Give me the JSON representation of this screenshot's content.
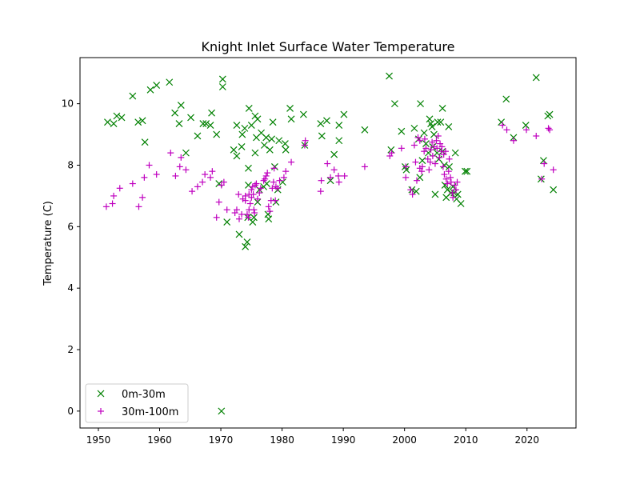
{
  "chart_data": {
    "type": "scatter",
    "title": "Knight Inlet Surface Water Temperature",
    "xlabel": "",
    "ylabel": "Temperature (C)",
    "xlim": [
      1947,
      2028
    ],
    "ylim": [
      -0.55,
      11.5
    ],
    "x_ticks": [
      1950,
      1960,
      1970,
      1980,
      1990,
      2000,
      2010,
      2020
    ],
    "y_ticks": [
      0,
      2,
      4,
      6,
      8,
      10
    ],
    "grid": false,
    "legend_position": "lower-left",
    "series": [
      {
        "name": "0m-30m",
        "marker": "x",
        "color": "#008000",
        "points": [
          [
            1951.5,
            9.4
          ],
          [
            1952.5,
            9.35
          ],
          [
            1953,
            9.6
          ],
          [
            1953.8,
            9.55
          ],
          [
            1955.6,
            10.25
          ],
          [
            1956.5,
            9.4
          ],
          [
            1957.2,
            9.45
          ],
          [
            1957.6,
            8.75
          ],
          [
            1958.5,
            10.45
          ],
          [
            1959.5,
            10.6
          ],
          [
            1961.6,
            10.7
          ],
          [
            1962.5,
            9.7
          ],
          [
            1963.2,
            9.35
          ],
          [
            1963.5,
            9.95
          ],
          [
            1964.3,
            8.4
          ],
          [
            1965.1,
            9.55
          ],
          [
            1966.2,
            8.95
          ],
          [
            1967.1,
            9.35
          ],
          [
            1967.6,
            9.35
          ],
          [
            1968.3,
            9.3
          ],
          [
            1968.5,
            9.7
          ],
          [
            1969.3,
            9.0
          ],
          [
            1969.7,
            7.4
          ],
          [
            1970.3,
            10.8
          ],
          [
            1970.3,
            10.55
          ],
          [
            1970.1,
            0.0
          ],
          [
            1971,
            6.15
          ],
          [
            1972.1,
            8.5
          ],
          [
            1972.6,
            8.3
          ],
          [
            1972.6,
            9.3
          ],
          [
            1973,
            5.75
          ],
          [
            1973.4,
            8.6
          ],
          [
            1973.5,
            9.0
          ],
          [
            1973.9,
            9.2
          ],
          [
            1974,
            5.35
          ],
          [
            1974.3,
            5.5
          ],
          [
            1974.4,
            6.3
          ],
          [
            1974.5,
            7.35
          ],
          [
            1974.6,
            9.85
          ],
          [
            1974.5,
            7.9
          ],
          [
            1975,
            9.3
          ],
          [
            1975.2,
            6.15
          ],
          [
            1975.4,
            6.3
          ],
          [
            1975.6,
            8.4
          ],
          [
            1975.6,
            9.6
          ],
          [
            1975.8,
            8.9
          ],
          [
            1976,
            6.8
          ],
          [
            1976,
            9.5
          ],
          [
            1976.3,
            7.2
          ],
          [
            1976.6,
            9.05
          ],
          [
            1977,
            7.3
          ],
          [
            1977.1,
            8.65
          ],
          [
            1977.4,
            8.9
          ],
          [
            1977.5,
            7.4
          ],
          [
            1977.7,
            6.4
          ],
          [
            1977.8,
            6.25
          ],
          [
            1978,
            8.5
          ],
          [
            1978.3,
            8.85
          ],
          [
            1978.5,
            9.4
          ],
          [
            1978.8,
            7.95
          ],
          [
            1979,
            6.8
          ],
          [
            1979.3,
            7.2
          ],
          [
            1979.5,
            8.8
          ],
          [
            1980.1,
            7.45
          ],
          [
            1980.5,
            8.7
          ],
          [
            1980.6,
            8.5
          ],
          [
            1981.3,
            9.85
          ],
          [
            1981.5,
            9.5
          ],
          [
            1983.5,
            9.65
          ],
          [
            1983.7,
            8.65
          ],
          [
            1986.3,
            9.35
          ],
          [
            1986.5,
            8.95
          ],
          [
            1987.3,
            9.45
          ],
          [
            1987.9,
            7.5
          ],
          [
            1988.5,
            8.35
          ],
          [
            1989.3,
            8.8
          ],
          [
            1989.3,
            9.3
          ],
          [
            1990.1,
            9.65
          ],
          [
            1993.5,
            9.15
          ],
          [
            1997.5,
            10.9
          ],
          [
            1997.8,
            8.5
          ],
          [
            1998.4,
            10.0
          ],
          [
            1999.5,
            9.1
          ],
          [
            2000.1,
            7.95
          ],
          [
            2000.3,
            7.85
          ],
          [
            2001.2,
            7.2
          ],
          [
            2001.6,
            9.2
          ],
          [
            2001.9,
            7.15
          ],
          [
            2002.3,
            8.85
          ],
          [
            2002.5,
            7.6
          ],
          [
            2002.6,
            10.0
          ],
          [
            2002.9,
            8.15
          ],
          [
            2003.2,
            9.05
          ],
          [
            2003.5,
            8.7
          ],
          [
            2003.9,
            8.4
          ],
          [
            2004.1,
            9.5
          ],
          [
            2004.3,
            9.35
          ],
          [
            2004.5,
            9.25
          ],
          [
            2004.6,
            8.6
          ],
          [
            2004.8,
            9.0
          ],
          [
            2005,
            7.05
          ],
          [
            2005.3,
            8.4
          ],
          [
            2005.4,
            9.4
          ],
          [
            2005.6,
            8.2
          ],
          [
            2005.9,
            9.4
          ],
          [
            2006.2,
            9.85
          ],
          [
            2006.2,
            8.45
          ],
          [
            2006.5,
            8.0
          ],
          [
            2006.6,
            7.35
          ],
          [
            2006.8,
            6.95
          ],
          [
            2007,
            7.2
          ],
          [
            2007.2,
            9.25
          ],
          [
            2007.3,
            7.95
          ],
          [
            2007.6,
            7.1
          ],
          [
            2007.9,
            7.3
          ],
          [
            2008.1,
            7.1
          ],
          [
            2008.3,
            8.4
          ],
          [
            2008.5,
            6.9
          ],
          [
            2008.7,
            7.05
          ],
          [
            2009.2,
            6.75
          ],
          [
            2009.9,
            7.8
          ],
          [
            2010.2,
            7.8
          ],
          [
            2015.8,
            9.4
          ],
          [
            2016.6,
            10.15
          ],
          [
            2017.8,
            8.9
          ],
          [
            2019.8,
            9.3
          ],
          [
            2021.5,
            10.85
          ],
          [
            2022.7,
            8.15
          ],
          [
            2022.3,
            7.55
          ],
          [
            2023.4,
            9.6
          ],
          [
            2023.7,
            9.65
          ],
          [
            2024.3,
            7.2
          ]
        ]
      },
      {
        "name": "30m-100m",
        "marker": "+",
        "color": "#bf00bf",
        "points": [
          [
            1951.3,
            6.65
          ],
          [
            1952.3,
            6.75
          ],
          [
            1952.5,
            7.0
          ],
          [
            1953.5,
            7.25
          ],
          [
            1955.6,
            7.4
          ],
          [
            1956.6,
            6.65
          ],
          [
            1957.2,
            6.95
          ],
          [
            1957.5,
            7.6
          ],
          [
            1958.3,
            8.0
          ],
          [
            1959.5,
            7.7
          ],
          [
            1961.8,
            8.4
          ],
          [
            1962.6,
            7.65
          ],
          [
            1963.3,
            7.95
          ],
          [
            1963.5,
            8.25
          ],
          [
            1964.3,
            7.85
          ],
          [
            1965.3,
            7.15
          ],
          [
            1966.2,
            7.3
          ],
          [
            1967,
            7.45
          ],
          [
            1967.4,
            7.7
          ],
          [
            1968.3,
            7.6
          ],
          [
            1968.6,
            7.8
          ],
          [
            1969.3,
            6.3
          ],
          [
            1969.7,
            6.8
          ],
          [
            1970.1,
            7.35
          ],
          [
            1970.5,
            7.45
          ],
          [
            1971,
            6.55
          ],
          [
            1972.3,
            6.45
          ],
          [
            1972.6,
            6.55
          ],
          [
            1972.9,
            7.05
          ],
          [
            1973,
            6.25
          ],
          [
            1973.4,
            6.4
          ],
          [
            1973.6,
            6.9
          ],
          [
            1974,
            7.0
          ],
          [
            1974,
            6.85
          ],
          [
            1974.3,
            6.4
          ],
          [
            1974.5,
            6.3
          ],
          [
            1974.6,
            6.55
          ],
          [
            1974.6,
            7.05
          ],
          [
            1974.8,
            6.75
          ],
          [
            1975,
            7.2
          ],
          [
            1975,
            6.95
          ],
          [
            1975.2,
            7.3
          ],
          [
            1975.3,
            7.05
          ],
          [
            1975.4,
            6.55
          ],
          [
            1975.5,
            6.45
          ],
          [
            1975.6,
            7.35
          ],
          [
            1975.8,
            7.4
          ],
          [
            1976,
            6.9
          ],
          [
            1976.3,
            7.1
          ],
          [
            1976.5,
            7.25
          ],
          [
            1977,
            7.5
          ],
          [
            1977.2,
            7.55
          ],
          [
            1977.4,
            7.65
          ],
          [
            1977.6,
            7.75
          ],
          [
            1977.8,
            6.65
          ],
          [
            1978,
            6.5
          ],
          [
            1978.2,
            6.85
          ],
          [
            1978.4,
            7.25
          ],
          [
            1978.6,
            7.45
          ],
          [
            1978.7,
            7.9
          ],
          [
            1978.9,
            6.85
          ],
          [
            1979,
            7.3
          ],
          [
            1979.3,
            7.25
          ],
          [
            1979.6,
            7.5
          ],
          [
            1980.3,
            7.6
          ],
          [
            1980.6,
            7.8
          ],
          [
            1981.5,
            8.1
          ],
          [
            1983.7,
            8.65
          ],
          [
            1983.8,
            8.8
          ],
          [
            1986.3,
            7.15
          ],
          [
            1986.4,
            7.5
          ],
          [
            1987.4,
            8.05
          ],
          [
            1987.9,
            7.6
          ],
          [
            1988.5,
            7.85
          ],
          [
            1989.2,
            7.65
          ],
          [
            1989.3,
            7.45
          ],
          [
            1990.2,
            7.65
          ],
          [
            1993.5,
            7.95
          ],
          [
            1997.6,
            8.3
          ],
          [
            1997.9,
            8.4
          ],
          [
            1999.5,
            8.55
          ],
          [
            2000.2,
            7.95
          ],
          [
            2000.2,
            7.6
          ],
          [
            2001,
            7.2
          ],
          [
            2001.3,
            7.05
          ],
          [
            2001.6,
            8.65
          ],
          [
            2001.8,
            8.1
          ],
          [
            2002,
            7.5
          ],
          [
            2002.2,
            8.9
          ],
          [
            2002.5,
            8.8
          ],
          [
            2002.5,
            7.9
          ],
          [
            2002.8,
            7.8
          ],
          [
            2002.9,
            7.95
          ],
          [
            2003.2,
            8.45
          ],
          [
            2003.3,
            8.85
          ],
          [
            2003.5,
            8.55
          ],
          [
            2003.8,
            8.2
          ],
          [
            2004,
            7.85
          ],
          [
            2004.2,
            8.1
          ],
          [
            2004.3,
            8.5
          ],
          [
            2004.5,
            8.75
          ],
          [
            2004.6,
            8.3
          ],
          [
            2004.8,
            8.6
          ],
          [
            2005,
            8.05
          ],
          [
            2005.2,
            8.8
          ],
          [
            2005.3,
            8.55
          ],
          [
            2005.5,
            8.95
          ],
          [
            2005.7,
            8.25
          ],
          [
            2005.8,
            8.7
          ],
          [
            2006,
            8.45
          ],
          [
            2006.1,
            8.6
          ],
          [
            2006.3,
            7.95
          ],
          [
            2006.4,
            8.35
          ],
          [
            2006.5,
            7.7
          ],
          [
            2006.7,
            8.45
          ],
          [
            2006.8,
            7.55
          ],
          [
            2007,
            7.4
          ],
          [
            2007.2,
            7.8
          ],
          [
            2007.3,
            8.2
          ],
          [
            2007.5,
            7.6
          ],
          [
            2007.6,
            7.45
          ],
          [
            2007.8,
            7.1
          ],
          [
            2007.9,
            6.95
          ],
          [
            2008.2,
            7.35
          ],
          [
            2008.4,
            7.2
          ],
          [
            2008.6,
            7.45
          ],
          [
            2016,
            9.3
          ],
          [
            2016.7,
            9.15
          ],
          [
            2017.8,
            8.8
          ],
          [
            2019.9,
            9.15
          ],
          [
            2021.5,
            8.95
          ],
          [
            2022.4,
            7.55
          ],
          [
            2022.8,
            8.05
          ],
          [
            2023.5,
            9.2
          ],
          [
            2023.7,
            9.15
          ],
          [
            2024.3,
            7.85
          ]
        ]
      }
    ]
  }
}
